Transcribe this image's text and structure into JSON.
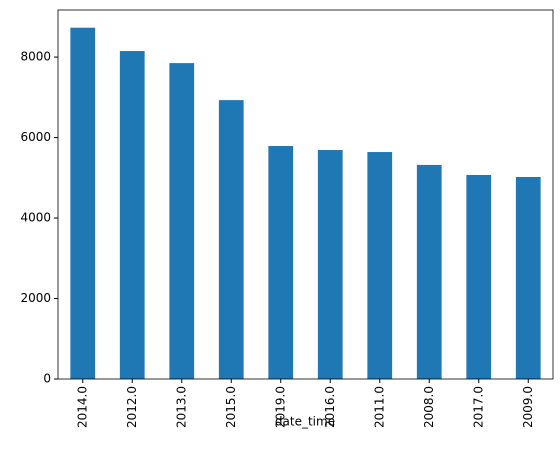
{
  "chart_data": {
    "type": "bar",
    "x_label": "date_time",
    "categories": [
      "2014.0",
      "2012.0",
      "2013.0",
      "2015.0",
      "2019.0",
      "2016.0",
      "2011.0",
      "2008.0",
      "2017.0",
      "2009.0"
    ],
    "values": [
      8730,
      8150,
      7850,
      6930,
      5790,
      5690,
      5640,
      5320,
      5070,
      5020
    ],
    "color": "#1f77b4",
    "ylim": [
      0,
      9170
    ],
    "yticks": [
      0,
      2000,
      4000,
      6000,
      8000
    ],
    "grid": false
  }
}
